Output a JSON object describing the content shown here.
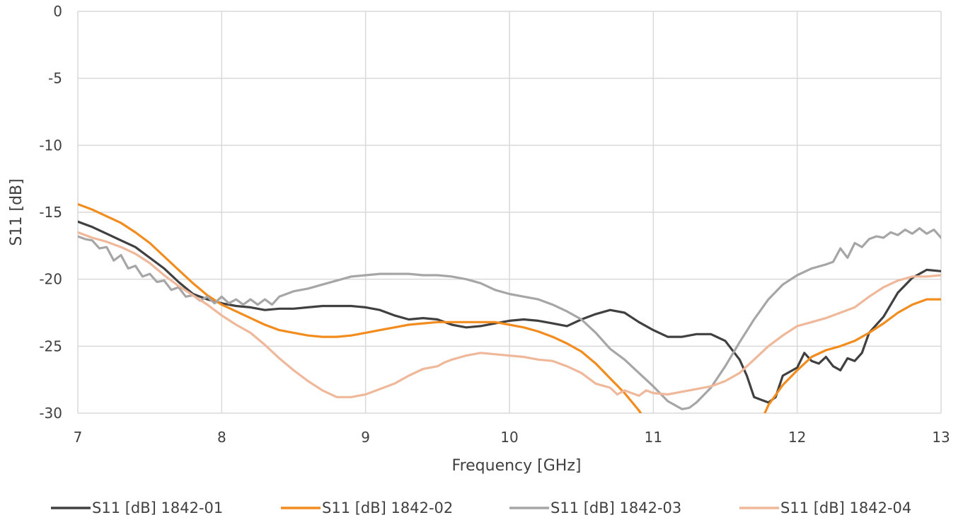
{
  "chart_data": {
    "type": "line",
    "xlabel": "Frequency [GHz]",
    "ylabel": "S11 [dB]",
    "xlim": [
      7,
      13
    ],
    "ylim": [
      -30,
      0
    ],
    "xticks": [
      "7",
      "8",
      "9",
      "10",
      "11",
      "12",
      "13"
    ],
    "yticks": [
      "0",
      "-5",
      "-10",
      "-15",
      "-20",
      "-25",
      "-30"
    ],
    "grid": true,
    "legend_position": "bottom",
    "series": [
      {
        "name": "S11 [dB] 1842-01",
        "color": "#404040",
        "points": [
          [
            7.0,
            -15.7
          ],
          [
            7.1,
            -16.1
          ],
          [
            7.2,
            -16.6
          ],
          [
            7.3,
            -17.1
          ],
          [
            7.4,
            -17.6
          ],
          [
            7.5,
            -18.4
          ],
          [
            7.6,
            -19.2
          ],
          [
            7.7,
            -20.2
          ],
          [
            7.8,
            -21.1
          ],
          [
            7.9,
            -21.5
          ],
          [
            8.0,
            -21.8
          ],
          [
            8.1,
            -22.0
          ],
          [
            8.2,
            -22.1
          ],
          [
            8.3,
            -22.3
          ],
          [
            8.4,
            -22.2
          ],
          [
            8.5,
            -22.2
          ],
          [
            8.6,
            -22.1
          ],
          [
            8.7,
            -22.0
          ],
          [
            8.8,
            -22.0
          ],
          [
            8.9,
            -22.0
          ],
          [
            9.0,
            -22.1
          ],
          [
            9.1,
            -22.3
          ],
          [
            9.2,
            -22.7
          ],
          [
            9.3,
            -23.0
          ],
          [
            9.4,
            -22.9
          ],
          [
            9.5,
            -23.0
          ],
          [
            9.6,
            -23.4
          ],
          [
            9.7,
            -23.6
          ],
          [
            9.8,
            -23.5
          ],
          [
            9.9,
            -23.3
          ],
          [
            10.0,
            -23.1
          ],
          [
            10.1,
            -23.0
          ],
          [
            10.2,
            -23.1
          ],
          [
            10.3,
            -23.3
          ],
          [
            10.4,
            -23.5
          ],
          [
            10.5,
            -23.0
          ],
          [
            10.6,
            -22.6
          ],
          [
            10.7,
            -22.3
          ],
          [
            10.8,
            -22.5
          ],
          [
            10.9,
            -23.2
          ],
          [
            11.0,
            -23.8
          ],
          [
            11.1,
            -24.3
          ],
          [
            11.2,
            -24.3
          ],
          [
            11.3,
            -24.1
          ],
          [
            11.4,
            -24.1
          ],
          [
            11.5,
            -24.6
          ],
          [
            11.6,
            -26.0
          ],
          [
            11.65,
            -27.2
          ],
          [
            11.7,
            -28.8
          ],
          [
            11.75,
            -29.0
          ],
          [
            11.8,
            -29.2
          ],
          [
            11.85,
            -28.8
          ],
          [
            11.9,
            -27.2
          ],
          [
            12.0,
            -26.6
          ],
          [
            12.05,
            -25.5
          ],
          [
            12.1,
            -26.1
          ],
          [
            12.15,
            -26.3
          ],
          [
            12.2,
            -25.8
          ],
          [
            12.25,
            -26.5
          ],
          [
            12.3,
            -26.8
          ],
          [
            12.35,
            -25.9
          ],
          [
            12.4,
            -26.1
          ],
          [
            12.45,
            -25.5
          ],
          [
            12.5,
            -24.0
          ],
          [
            12.6,
            -22.8
          ],
          [
            12.7,
            -21.0
          ],
          [
            12.8,
            -19.9
          ],
          [
            12.9,
            -19.3
          ],
          [
            13.0,
            -19.4
          ]
        ]
      },
      {
        "name": "S11 [dB] 1842-02",
        "color": "#f28c1e",
        "points": [
          [
            7.0,
            -14.4
          ],
          [
            7.1,
            -14.8
          ],
          [
            7.2,
            -15.3
          ],
          [
            7.3,
            -15.8
          ],
          [
            7.4,
            -16.5
          ],
          [
            7.5,
            -17.3
          ],
          [
            7.6,
            -18.3
          ],
          [
            7.7,
            -19.3
          ],
          [
            7.8,
            -20.3
          ],
          [
            7.9,
            -21.2
          ],
          [
            8.0,
            -21.9
          ],
          [
            8.1,
            -22.4
          ],
          [
            8.2,
            -22.9
          ],
          [
            8.3,
            -23.4
          ],
          [
            8.4,
            -23.8
          ],
          [
            8.5,
            -24.0
          ],
          [
            8.6,
            -24.2
          ],
          [
            8.7,
            -24.3
          ],
          [
            8.8,
            -24.3
          ],
          [
            8.9,
            -24.2
          ],
          [
            9.0,
            -24.0
          ],
          [
            9.1,
            -23.8
          ],
          [
            9.2,
            -23.6
          ],
          [
            9.3,
            -23.4
          ],
          [
            9.4,
            -23.3
          ],
          [
            9.5,
            -23.2
          ],
          [
            9.6,
            -23.2
          ],
          [
            9.7,
            -23.2
          ],
          [
            9.8,
            -23.2
          ],
          [
            9.9,
            -23.2
          ],
          [
            10.0,
            -23.4
          ],
          [
            10.1,
            -23.6
          ],
          [
            10.2,
            -23.9
          ],
          [
            10.3,
            -24.3
          ],
          [
            10.4,
            -24.8
          ],
          [
            10.5,
            -25.4
          ],
          [
            10.6,
            -26.3
          ],
          [
            10.7,
            -27.4
          ],
          [
            10.8,
            -28.5
          ],
          [
            10.9,
            -29.8
          ],
          [
            10.95,
            -30.6
          ],
          [
            11.75,
            -30.6
          ],
          [
            11.8,
            -29.4
          ],
          [
            11.9,
            -27.9
          ],
          [
            12.0,
            -26.8
          ],
          [
            12.1,
            -25.8
          ],
          [
            12.2,
            -25.3
          ],
          [
            12.3,
            -25.0
          ],
          [
            12.4,
            -24.6
          ],
          [
            12.5,
            -24.0
          ],
          [
            12.6,
            -23.3
          ],
          [
            12.7,
            -22.5
          ],
          [
            12.8,
            -21.9
          ],
          [
            12.9,
            -21.5
          ],
          [
            13.0,
            -21.5
          ]
        ]
      },
      {
        "name": "S11 [dB] 1842-03",
        "color": "#a6a6a6",
        "points": [
          [
            7.0,
            -16.8
          ],
          [
            7.05,
            -17.0
          ],
          [
            7.1,
            -17.1
          ],
          [
            7.15,
            -17.7
          ],
          [
            7.2,
            -17.6
          ],
          [
            7.25,
            -18.6
          ],
          [
            7.3,
            -18.2
          ],
          [
            7.35,
            -19.2
          ],
          [
            7.4,
            -19.0
          ],
          [
            7.45,
            -19.8
          ],
          [
            7.5,
            -19.6
          ],
          [
            7.55,
            -20.2
          ],
          [
            7.6,
            -20.1
          ],
          [
            7.65,
            -20.8
          ],
          [
            7.7,
            -20.6
          ],
          [
            7.75,
            -21.3
          ],
          [
            7.8,
            -21.2
          ],
          [
            7.85,
            -21.6
          ],
          [
            7.9,
            -21.3
          ],
          [
            7.95,
            -21.8
          ],
          [
            8.0,
            -21.3
          ],
          [
            8.05,
            -21.8
          ],
          [
            8.1,
            -21.5
          ],
          [
            8.15,
            -21.9
          ],
          [
            8.2,
            -21.5
          ],
          [
            8.25,
            -21.9
          ],
          [
            8.3,
            -21.5
          ],
          [
            8.35,
            -21.9
          ],
          [
            8.4,
            -21.3
          ],
          [
            8.5,
            -20.9
          ],
          [
            8.6,
            -20.7
          ],
          [
            8.7,
            -20.4
          ],
          [
            8.8,
            -20.1
          ],
          [
            8.9,
            -19.8
          ],
          [
            9.0,
            -19.7
          ],
          [
            9.1,
            -19.6
          ],
          [
            9.2,
            -19.6
          ],
          [
            9.3,
            -19.6
          ],
          [
            9.4,
            -19.7
          ],
          [
            9.5,
            -19.7
          ],
          [
            9.6,
            -19.8
          ],
          [
            9.7,
            -20.0
          ],
          [
            9.8,
            -20.3
          ],
          [
            9.9,
            -20.8
          ],
          [
            10.0,
            -21.1
          ],
          [
            10.1,
            -21.3
          ],
          [
            10.2,
            -21.5
          ],
          [
            10.3,
            -21.9
          ],
          [
            10.4,
            -22.4
          ],
          [
            10.5,
            -23.0
          ],
          [
            10.6,
            -24.0
          ],
          [
            10.7,
            -25.2
          ],
          [
            10.8,
            -26.0
          ],
          [
            10.9,
            -27.0
          ],
          [
            11.0,
            -28.0
          ],
          [
            11.1,
            -29.1
          ],
          [
            11.2,
            -29.7
          ],
          [
            11.25,
            -29.6
          ],
          [
            11.3,
            -29.2
          ],
          [
            11.4,
            -28.1
          ],
          [
            11.5,
            -26.5
          ],
          [
            11.6,
            -24.7
          ],
          [
            11.7,
            -23.0
          ],
          [
            11.8,
            -21.5
          ],
          [
            11.9,
            -20.4
          ],
          [
            12.0,
            -19.7
          ],
          [
            12.1,
            -19.2
          ],
          [
            12.2,
            -18.9
          ],
          [
            12.25,
            -18.7
          ],
          [
            12.3,
            -17.7
          ],
          [
            12.35,
            -18.4
          ],
          [
            12.4,
            -17.3
          ],
          [
            12.45,
            -17.6
          ],
          [
            12.5,
            -17.0
          ],
          [
            12.55,
            -16.8
          ],
          [
            12.6,
            -16.9
          ],
          [
            12.65,
            -16.5
          ],
          [
            12.7,
            -16.7
          ],
          [
            12.75,
            -16.3
          ],
          [
            12.8,
            -16.6
          ],
          [
            12.85,
            -16.2
          ],
          [
            12.9,
            -16.6
          ],
          [
            12.95,
            -16.3
          ],
          [
            13.0,
            -16.9
          ]
        ]
      },
      {
        "name": "S11 [dB] 1842-04",
        "color": "#f0b89a",
        "points": [
          [
            7.0,
            -16.5
          ],
          [
            7.1,
            -16.9
          ],
          [
            7.2,
            -17.2
          ],
          [
            7.3,
            -17.6
          ],
          [
            7.4,
            -18.1
          ],
          [
            7.5,
            -18.8
          ],
          [
            7.6,
            -19.7
          ],
          [
            7.7,
            -20.5
          ],
          [
            7.8,
            -21.2
          ],
          [
            7.9,
            -21.9
          ],
          [
            8.0,
            -22.7
          ],
          [
            8.1,
            -23.4
          ],
          [
            8.2,
            -24.0
          ],
          [
            8.3,
            -24.9
          ],
          [
            8.4,
            -25.9
          ],
          [
            8.5,
            -26.8
          ],
          [
            8.6,
            -27.6
          ],
          [
            8.7,
            -28.3
          ],
          [
            8.8,
            -28.8
          ],
          [
            8.9,
            -28.8
          ],
          [
            9.0,
            -28.6
          ],
          [
            9.1,
            -28.2
          ],
          [
            9.2,
            -27.8
          ],
          [
            9.3,
            -27.2
          ],
          [
            9.4,
            -26.7
          ],
          [
            9.5,
            -26.5
          ],
          [
            9.55,
            -26.2
          ],
          [
            9.6,
            -26.0
          ],
          [
            9.7,
            -25.7
          ],
          [
            9.8,
            -25.5
          ],
          [
            9.9,
            -25.6
          ],
          [
            10.0,
            -25.7
          ],
          [
            10.1,
            -25.8
          ],
          [
            10.2,
            -26.0
          ],
          [
            10.3,
            -26.1
          ],
          [
            10.4,
            -26.5
          ],
          [
            10.5,
            -27.0
          ],
          [
            10.6,
            -27.8
          ],
          [
            10.7,
            -28.1
          ],
          [
            10.75,
            -28.6
          ],
          [
            10.8,
            -28.3
          ],
          [
            10.9,
            -28.7
          ],
          [
            10.95,
            -28.3
          ],
          [
            11.0,
            -28.5
          ],
          [
            11.1,
            -28.6
          ],
          [
            11.2,
            -28.4
          ],
          [
            11.3,
            -28.2
          ],
          [
            11.4,
            -28.0
          ],
          [
            11.5,
            -27.6
          ],
          [
            11.6,
            -27.0
          ],
          [
            11.7,
            -26.0
          ],
          [
            11.8,
            -25.0
          ],
          [
            11.9,
            -24.2
          ],
          [
            12.0,
            -23.5
          ],
          [
            12.1,
            -23.2
          ],
          [
            12.2,
            -22.9
          ],
          [
            12.3,
            -22.5
          ],
          [
            12.4,
            -22.1
          ],
          [
            12.5,
            -21.3
          ],
          [
            12.6,
            -20.6
          ],
          [
            12.7,
            -20.1
          ],
          [
            12.8,
            -19.8
          ],
          [
            12.9,
            -19.8
          ],
          [
            13.0,
            -19.7
          ]
        ]
      }
    ]
  }
}
